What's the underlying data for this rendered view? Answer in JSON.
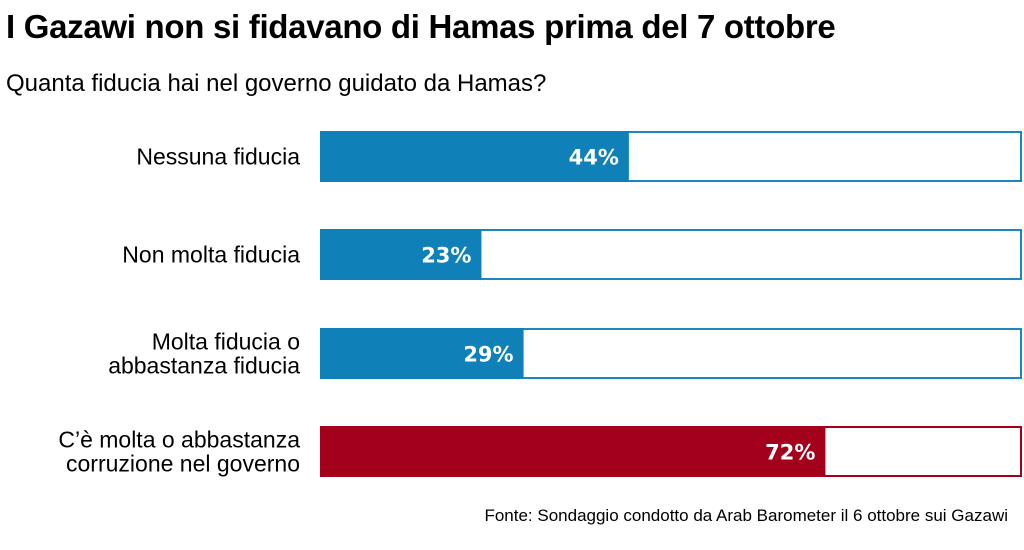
{
  "title": "I Gazawi non si fidavano di Hamas prima del 7 ottobre",
  "subtitle": "Quanta fiducia hai nel governo guidato da Hamas?",
  "source": "Fonte: Sondaggio condotto da Arab Barometer il 6 ottobre sui Gazawi",
  "colors": {
    "trust_bar": "#0f80b8",
    "corruption_bar": "#a3001b",
    "bar_outline_blue": "#1a86c2",
    "bar_outline_red": "#a3001b"
  },
  "chart_data": {
    "type": "bar",
    "orientation": "horizontal",
    "title": "I Gazawi non si fidavano di Hamas prima del 7 ottobre",
    "subtitle": "Quanta fiducia hai nel governo guidato da Hamas?",
    "categories": [
      [
        "Nessuna fiducia"
      ],
      [
        "Non molta fiducia"
      ],
      [
        "Molta fiducia o",
        "abbastanza fiducia"
      ],
      [
        "C’è molta o abbastanza",
        "corruzione nel governo"
      ]
    ],
    "values": [
      44,
      23,
      29,
      72
    ],
    "value_labels": [
      "44%",
      "23%",
      "29%",
      "72%"
    ],
    "bar_colors": [
      "#0f80b8",
      "#0f80b8",
      "#0f80b8",
      "#a3001b"
    ],
    "outline_colors": [
      "#1a86c2",
      "#1a86c2",
      "#1a86c2",
      "#a3001b"
    ],
    "xlim": [
      0,
      100
    ],
    "unit": "%",
    "grid": false,
    "legend": "none"
  }
}
